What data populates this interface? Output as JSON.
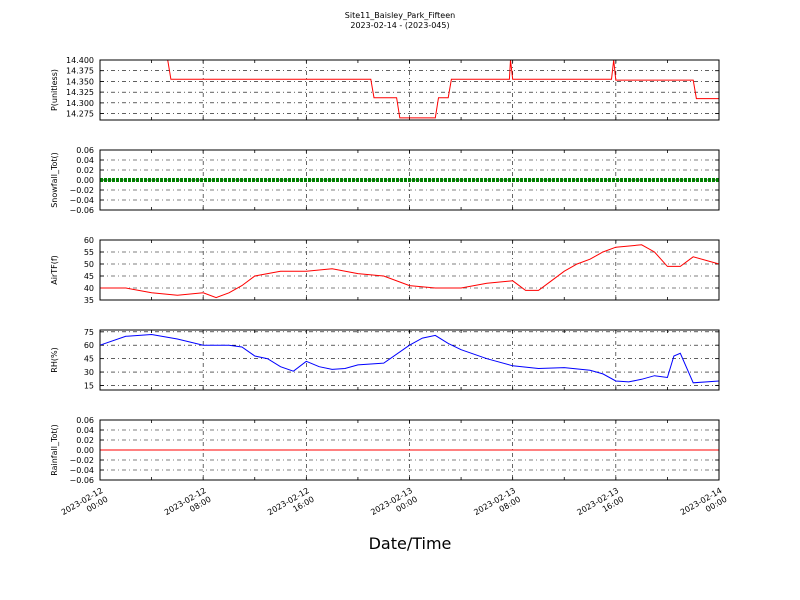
{
  "header": {
    "title": "Site11_Baisley_Park_Fifteen",
    "subtitle": "2023-02-14 - (2023-045)"
  },
  "colors": {
    "pressure": "#ff0000",
    "snowfall": "#008000",
    "air_temp": "#ff0000",
    "rh": "#0000ff",
    "rainfall": "#ff0000",
    "grid": "#000000"
  },
  "chart_data": {
    "type": "line",
    "xlabel": "Date/Time",
    "x_range": [
      "2023-02-12 00:00",
      "2023-02-14 00:00"
    ],
    "x_ticks": [
      "2023-02-12 00:00",
      "2023-02-12 08:00",
      "2023-02-12 16:00",
      "2023-02-13 00:00",
      "2023-02-13 08:00",
      "2023-02-13 16:00",
      "2023-02-14 00:00"
    ],
    "grid": true,
    "panels": [
      {
        "name": "pressure",
        "ylabel": "P(unitless)",
        "ylim": [
          14.26,
          14.4
        ],
        "yticks": [
          "14.400",
          "14.375",
          "14.350",
          "14.325",
          "14.300",
          "14.275"
        ],
        "color": "#ff0000",
        "x": [
          "2023-02-12 00:00",
          "2023-02-12 05:15",
          "2023-02-12 05:30",
          "2023-02-12 21:00",
          "2023-02-12 21:15",
          "2023-02-12 23:00",
          "2023-02-12 23:15",
          "2023-02-13 02:00",
          "2023-02-13 02:15",
          "2023-02-13 03:00",
          "2023-02-13 03:15",
          "2023-02-13 07:45",
          "2023-02-13 07:50",
          "2023-02-13 08:00",
          "2023-02-13 15:40",
          "2023-02-13 15:50",
          "2023-02-13 16:00",
          "2023-02-13 22:00",
          "2023-02-13 22:15",
          "2023-02-14 00:00"
        ],
        "y": [
          14.4,
          14.4,
          14.355,
          14.355,
          14.312,
          14.312,
          14.265,
          14.265,
          14.312,
          14.312,
          14.355,
          14.355,
          14.4,
          14.355,
          14.355,
          14.4,
          14.353,
          14.353,
          14.31,
          14.31
        ]
      },
      {
        "name": "snowfall",
        "ylabel": "Snowfall_Tot()",
        "ylim": [
          -0.06,
          0.06
        ],
        "yticks": [
          "0.06",
          "0.04",
          "0.02",
          "0.00",
          "−0.02",
          "−0.04",
          "−0.06"
        ],
        "color": "#008000",
        "x": [
          "2023-02-12 00:00",
          "2023-02-14 00:00"
        ],
        "y": [
          0.0,
          0.0
        ]
      },
      {
        "name": "air_temp",
        "ylabel": "AirTF(f)",
        "ylim": [
          35,
          60
        ],
        "yticks": [
          "60",
          "55",
          "50",
          "45",
          "40",
          "35"
        ],
        "color": "#ff0000",
        "x": [
          "2023-02-12 00:00",
          "2023-02-12 02:00",
          "2023-02-12 04:00",
          "2023-02-12 06:00",
          "2023-02-12 08:00",
          "2023-02-12 09:00",
          "2023-02-12 10:00",
          "2023-02-12 11:00",
          "2023-02-12 12:00",
          "2023-02-12 13:00",
          "2023-02-12 14:00",
          "2023-02-12 16:00",
          "2023-02-12 18:00",
          "2023-02-12 20:00",
          "2023-02-12 22:00",
          "2023-02-13 00:00",
          "2023-02-13 02:00",
          "2023-02-13 04:00",
          "2023-02-13 06:00",
          "2023-02-13 08:00",
          "2023-02-13 09:00",
          "2023-02-13 10:00",
          "2023-02-13 11:00",
          "2023-02-13 12:00",
          "2023-02-13 13:00",
          "2023-02-13 14:00",
          "2023-02-13 15:00",
          "2023-02-13 16:00",
          "2023-02-13 18:00",
          "2023-02-13 19:00",
          "2023-02-13 20:00",
          "2023-02-13 21:00",
          "2023-02-13 22:00",
          "2023-02-14 00:00"
        ],
        "y": [
          40,
          40,
          38,
          37,
          38,
          36,
          38,
          41,
          45,
          46,
          47,
          47,
          48,
          46,
          45,
          41,
          40,
          40,
          42,
          43,
          39,
          39,
          43,
          47,
          50,
          52,
          55,
          57,
          58,
          55,
          49,
          49,
          53,
          50
        ]
      },
      {
        "name": "rh",
        "ylabel": "RH(%)",
        "ylim": [
          10,
          77
        ],
        "yticks": [
          "75",
          "60",
          "45",
          "30",
          "15"
        ],
        "color": "#0000ff",
        "x": [
          "2023-02-12 00:00",
          "2023-02-12 02:00",
          "2023-02-12 04:00",
          "2023-02-12 06:00",
          "2023-02-12 08:00",
          "2023-02-12 10:00",
          "2023-02-12 11:00",
          "2023-02-12 12:00",
          "2023-02-12 13:00",
          "2023-02-12 14:00",
          "2023-02-12 15:00",
          "2023-02-12 16:00",
          "2023-02-12 17:00",
          "2023-02-12 18:00",
          "2023-02-12 19:00",
          "2023-02-12 20:00",
          "2023-02-12 22:00",
          "2023-02-13 00:00",
          "2023-02-13 01:00",
          "2023-02-13 02:00",
          "2023-02-13 03:00",
          "2023-02-13 04:00",
          "2023-02-13 06:00",
          "2023-02-13 08:00",
          "2023-02-13 10:00",
          "2023-02-13 12:00",
          "2023-02-13 14:00",
          "2023-02-13 15:00",
          "2023-02-13 16:00",
          "2023-02-13 17:00",
          "2023-02-13 18:00",
          "2023-02-13 19:00",
          "2023-02-13 20:00",
          "2023-02-13 20:30",
          "2023-02-13 21:00",
          "2023-02-13 22:00",
          "2023-02-14 00:00"
        ],
        "y": [
          60,
          70,
          72,
          67,
          60,
          60,
          58,
          48,
          45,
          36,
          31,
          42,
          36,
          33,
          34,
          38,
          40,
          60,
          68,
          71,
          62,
          55,
          45,
          37,
          34,
          35,
          32,
          28,
          20,
          19,
          22,
          26,
          24,
          48,
          51,
          18,
          20
        ]
      },
      {
        "name": "rainfall",
        "ylabel": "Rainfall_Tot()",
        "ylim": [
          -0.06,
          0.06
        ],
        "yticks": [
          "0.06",
          "0.04",
          "0.02",
          "0.00",
          "−0.02",
          "−0.04",
          "−0.06"
        ],
        "color": "#ff0000",
        "x": [
          "2023-02-12 00:00",
          "2023-02-14 00:00"
        ],
        "y": [
          0.0,
          0.0
        ]
      }
    ]
  }
}
